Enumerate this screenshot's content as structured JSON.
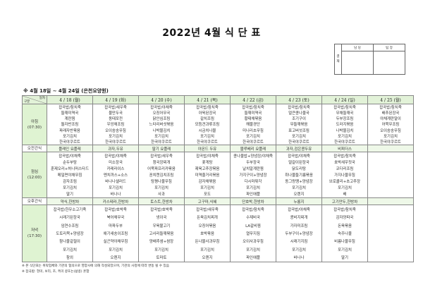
{
  "title": "2022년 4월 식 단 표",
  "approval": {
    "side_label": "결\n재",
    "columns": [
      "담 당",
      "팀 장"
    ]
  },
  "note": "※ 4월 18일 ~ 4월 24일 (은천요양원)",
  "corner": {
    "top": "일자",
    "bottom": "구분"
  },
  "days": [
    {
      "label": "4 / 18 (월)",
      "type": "weekday"
    },
    {
      "label": "4 / 19 (화)",
      "type": "weekday"
    },
    {
      "label": "4 / 20 (수)",
      "type": "weekday"
    },
    {
      "label": "4 / 21 (목)",
      "type": "weekday"
    },
    {
      "label": "4 / 22 (금)",
      "type": "weekday"
    },
    {
      "label": "4 / 23 (토)",
      "type": "saturday"
    },
    {
      "label": "4 / 24 (일)",
      "type": "sunday"
    },
    {
      "label": "4 / 25 (월)",
      "type": "weekday"
    }
  ],
  "colors": {
    "header_bg": "#e2f2d8",
    "saturday": "#1a3fd6",
    "sunday": "#d42020"
  },
  "meals": [
    {
      "label": "아침",
      "time": "(07:30)",
      "kind": "b",
      "menus": [
        [
          "잡곡밥/참치죽",
          "들깨미역국",
          "계란찜",
          "돌자반조림",
          "파래자반볶음",
          "포기김치",
          "한국야쿠르트"
        ],
        [
          "잡곡밥/새우죽",
          "물만두국",
          "동태포전",
          "우엉채조림",
          "오이송송무침",
          "포기김치",
          "한국야쿠르트"
        ],
        [
          "잡곡밥/야채죽",
          "오징어무국",
          "닭안심조림",
          "느타리버섯볶음",
          "나박물김치",
          "포기김치",
          "한국야쿠르트"
        ],
        [
          "잡곡밥/참치죽",
          "아욱된장국",
          "갈치조림",
          "모듬견과류조림",
          "시금치나물",
          "포기김치",
          "한국야쿠르트"
        ],
        [
          "잡곡밥/참치죽",
          "들깨미역국",
          "황태채볶음",
          "해물경단",
          "미나리초무침",
          "포기김치",
          "한국야쿠르트"
        ],
        [
          "잡곡밥/참치죽",
          "얼큰콩나물국",
          "조기구이",
          "무들깨볶음",
          "표고버섯조림",
          "포기김치",
          "한국야쿠르트"
        ],
        [
          "잡곡밥/참치죽",
          "무채들깨국",
          "두부장조림",
          "도라지볶음",
          "나박물김치",
          "포기김치",
          "한국야쿠르트"
        ],
        [
          "잡곡밥/참치죽",
          "배추된장국",
          "야채계란말이",
          "어묵무조림",
          "오이송송무침",
          "포기김치",
          "한국야쿠르트"
        ]
      ]
    },
    {
      "label": "오전간식",
      "kind": "s",
      "menus": [
        "플레인 요플레",
        "과자,두유",
        "딸기 요플레",
        "아몬드 두유",
        "블루베리 요플레",
        "과자,검은콩두유",
        "비피더스",
        ""
      ]
    },
    {
      "label": "점심",
      "time": "(12:00)",
      "kind": "l",
      "menus": [
        [
          "잡곡밥/야채죽",
          "순두부탕",
          "훈제오리+허니머스타드",
          "메밀면야채무침",
          "감자조림",
          "포기김치",
          "딸기"
        ],
        [
          "잡곡밥/야채죽",
          "미소장국",
          "카레라이스",
          "멘치까스+소스",
          "바나나샐러드",
          "포기김치",
          "바나나"
        ],
        [
          "잡곡밥/새우죽",
          "청국장찌개",
          "어묵파프리카볶음",
          "꽁치캔김치조림",
          "탕평나물무침",
          "포기김치",
          "사과"
        ],
        [
          "잡곡밥/야채죽",
          "꽃게탕",
          "제육고추장볶음",
          "미역줄거리볶음",
          "감자채볶음",
          "포기김치",
          "포도"
        ],
        [
          "콩나물밥+양념장/야채죽",
          "두부장국",
          "날치알계란찜",
          "가지구이+양념장",
          "다시마튀각",
          "포기김치",
          "파인애플"
        ],
        [
          "잡곡밥/야채죽",
          "얼갈이된장국",
          "닭도리탕",
          "취나물들기름볶음",
          "동그랑땡+양념장",
          "포기김치",
          "오렌지"
        ],
        [
          "잡곡밥/참치죽",
          "호박새우젓국",
          "코다리조림",
          "가지나물무침",
          "브로콜리+초고추장",
          "포기김치",
          "배"
        ],
        []
      ]
    },
    {
      "label": "오후간식",
      "kind": "s",
      "menus": [
        "약식,한방차",
        "카스테라,한방차",
        "토스트,한방차",
        "고구마,식혜",
        "단호박,한방차",
        "누룽지",
        "고기만두,한방차",
        ""
      ]
    },
    {
      "label": "저녁",
      "time": "(17:30)",
      "kind": "d",
      "menus": [
        [
          "잡곡밥/한우소고기죽",
          "시래기된장국",
          "임연수조림",
          "도토리묵+양념장",
          "참나물겉절이",
          "포기김치",
          "참외"
        ],
        [
          "잡곡밥/호박죽",
          "북어채무국",
          "마파두부",
          "애기새송이조림",
          "실곤약야채무침",
          "포기김치",
          "오렌지"
        ],
        [
          "잡곡밥/호박죽",
          "냉이국",
          "우육불고기",
          "고사리들깨볶음",
          "양배추쌈+쌈장",
          "포기김치",
          "토마토"
        ],
        [
          "잡곡밥/새우죽",
          "돈육김치찌개",
          "오징어볶음",
          "호박볶음",
          "돈나물사과무침",
          "포기김치",
          "오렌지"
        ],
        [
          "잡곡밥/참치죽",
          "수제비국",
          "LA갈비찜",
          "열무지짐",
          "오이사과무침",
          "포기김치",
          "파인애플"
        ],
        [
          "잡곡밥/야채죽",
          "콩비지찌개",
          "가자미조림",
          "두부구이+양념장",
          "시래기지짐",
          "포기김치",
          "바나나"
        ],
        [
          "잡곡밥/참치죽",
          "감자양파국",
          "돈육볶음",
          "숙주나물",
          "비름나물무침",
          "포기김치",
          "딸기"
        ],
        []
      ]
    }
  ],
  "footnotes": [
    "※ 본 식단표는 위탁업체와 기관의 협의으로 영양사에 의해 작성되었으며, 기관의 사정에 따라 변동 될 수 있음",
    "※ 잡곡밥: 현미, 보리, 조, 흑미 콩또는(삶콩) 혼합"
  ]
}
